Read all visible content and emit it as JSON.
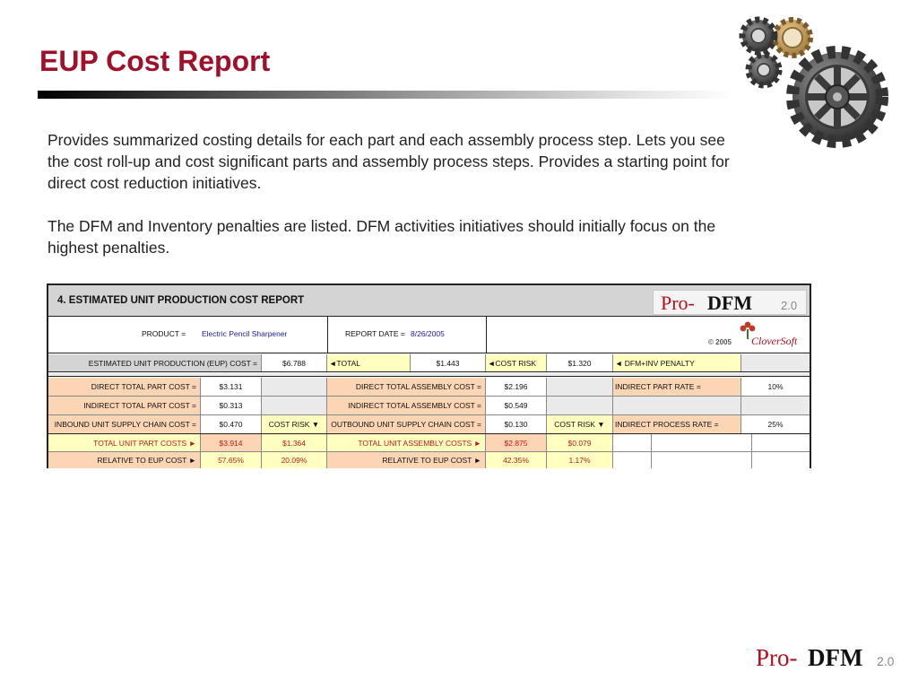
{
  "slide": {
    "title": "EUP Cost Report",
    "paragraph1": "Provides summarized costing details for each part and each assembly process step. Lets you see the cost roll-up and cost significant parts and assembly process steps. Provides a starting point for direct cost reduction initiatives.",
    "paragraph2": "The DFM and Inventory penalties are listed. DFM activities initiatives should initially focus on the highest penalties."
  },
  "report": {
    "title": "4. ESTIMATED UNIT PRODUCTION COST REPORT",
    "logo": {
      "pro": "Pro-",
      "dfm": "DFM",
      "version": "2.0"
    },
    "product_label": "PRODUCT =",
    "product_value": "Electric Pencil Sharpener",
    "report_date_label": "REPORT DATE =",
    "report_date_value": "8/26/2005",
    "cloversoft": {
      "year": "© 2005",
      "name": "CloverSoft"
    },
    "eup": {
      "label": "ESTIMATED UNIT PRODUCTION (EUP) COST =",
      "value": "$6.788",
      "total_label": "◄TOTAL",
      "total_value": "$1.443",
      "cost_risk_label": "◄COST RISK",
      "cost_risk_value": "$1.320",
      "penalty_label": "◄ DFM+INV PENALTY"
    },
    "rows": {
      "direct_part_label": "DIRECT TOTAL PART COST =",
      "direct_part_value": "$3.131",
      "direct_asm_label": "DIRECT TOTAL ASSEMBLY COST =",
      "direct_asm_value": "$2.196",
      "indirect_part_rate_label": "INDIRECT PART RATE =",
      "indirect_part_rate_value": "10%",
      "indirect_part_label": "INDIRECT TOTAL PART COST =",
      "indirect_part_value": "$0.313",
      "indirect_asm_label": "INDIRECT TOTAL ASSEMBLY COST =",
      "indirect_asm_value": "$0.549",
      "inbound_label": "INBOUND UNIT SUPPLY CHAIN COST  =",
      "inbound_value": "$0.470",
      "cost_risk_part_label": "COST RISK ▼",
      "outbound_label": "OUTBOUND UNIT SUPPLY CHAIN COST =",
      "outbound_value": "$0.130",
      "cost_risk_asm_label": "COST RISK ▼",
      "indirect_process_rate_label": "INDIRECT PROCESS RATE =",
      "indirect_process_rate_value": "25%",
      "total_part_label": "TOTAL UNIT PART COSTS  ►",
      "total_part_value": "$3.914",
      "total_part_risk": "$1.364",
      "total_asm_label": "TOTAL UNIT ASSEMBLY COSTS  ►",
      "total_asm_value": "$2.875",
      "total_asm_risk": "$0.079",
      "rel_part_label": "RELATIVE TO EUP COST  ►",
      "rel_part_value": "57.65%",
      "rel_part_risk": "20.09%",
      "rel_asm_label": "RELATIVE TO EUP COST  ►",
      "rel_asm_value": "42.35%",
      "rel_asm_risk": "1.17%"
    }
  },
  "footer_logo": {
    "pro": "Pro-",
    "dfm": "DFM",
    "version": "2.0"
  },
  "colors": {
    "title": "#a0102a",
    "logo_red": "#b01020",
    "peach": "#fcd5b4",
    "yellow": "#ffffc0",
    "gray": "#d4d4d4"
  }
}
